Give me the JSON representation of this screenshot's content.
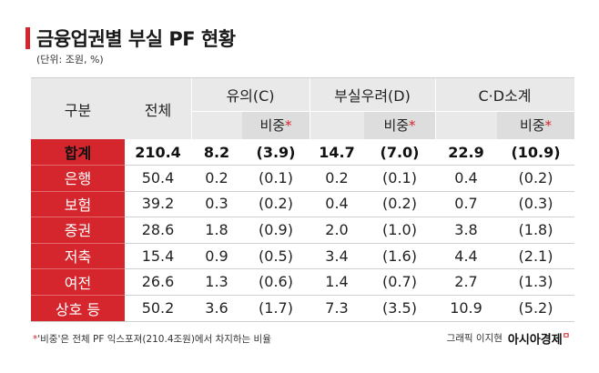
{
  "title": "금융업권별 부실 PF 현황",
  "unit": "(단위: 조원, %)",
  "table": {
    "col_gubun": "구분",
    "col_total": "전체",
    "group_c": "유의(C)",
    "group_d": "부실우려(D)",
    "group_cd": "C·D소계",
    "share_label": "비중",
    "star": "*",
    "rows": [
      {
        "name": "합계",
        "total": "210.4",
        "c": "8.2",
        "c_share": "(3.9)",
        "d": "14.7",
        "d_share": "(7.0)",
        "cd": "22.9",
        "cd_share": "(10.9)"
      },
      {
        "name": "은행",
        "total": "50.4",
        "c": "0.2",
        "c_share": "(0.1)",
        "d": "0.2",
        "d_share": "(0.1)",
        "cd": "0.4",
        "cd_share": "(0.2)"
      },
      {
        "name": "보험",
        "total": "39.2",
        "c": "0.3",
        "c_share": "(0.2)",
        "d": "0.4",
        "d_share": "(0.2)",
        "cd": "0.7",
        "cd_share": "(0.3)"
      },
      {
        "name": "증권",
        "total": "28.6",
        "c": "1.8",
        "c_share": "(0.9)",
        "d": "2.0",
        "d_share": "(1.0)",
        "cd": "3.8",
        "cd_share": "(1.8)"
      },
      {
        "name": "저축",
        "total": "15.4",
        "c": "0.9",
        "c_share": "(0.5)",
        "d": "3.4",
        "d_share": "(1.6)",
        "cd": "4.4",
        "cd_share": "(2.1)"
      },
      {
        "name": "여전",
        "total": "26.6",
        "c": "1.3",
        "c_share": "(0.6)",
        "d": "1.4",
        "d_share": "(0.7)",
        "cd": "2.7",
        "cd_share": "(1.3)"
      },
      {
        "name": "상호 등",
        "total": "50.2",
        "c": "3.6",
        "c_share": "(1.7)",
        "d": "7.3",
        "d_share": "(3.5)",
        "cd": "10.9",
        "cd_share": "(5.2)"
      }
    ]
  },
  "footnote": {
    "star": "*",
    "text": "'비중'은 전체 PF 익스포져(210.4조원)에서 차지하는 비율"
  },
  "credit": {
    "text": "그래픽 이지현",
    "brand": "아시아경제",
    "brand_mark": "ㅁ"
  },
  "colors": {
    "accent": "#d4262c",
    "header_bg": "#e9e9e9",
    "sub_header_bg": "#dddddd"
  }
}
